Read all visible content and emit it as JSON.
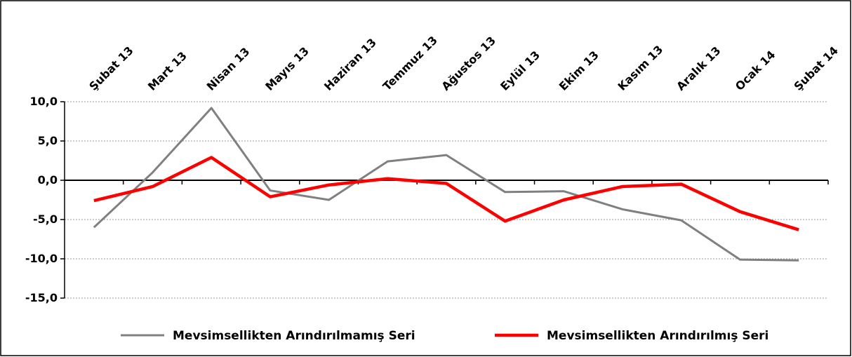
{
  "chart_data": {
    "type": "line",
    "categories": [
      "Şubat 13",
      "Mart 13",
      "Nisan 13",
      "Mayıs 13",
      "Haziran 13",
      "Temmuz 13",
      "Ağustos 13",
      "Eylül 13",
      "Ekim 13",
      "Kasım 13",
      "Aralık 13",
      "Ocak 14",
      "Şubat 14"
    ],
    "series": [
      {
        "name": "Mevsimsellikten Arındırılmamış Seri",
        "color": "#808080",
        "values": [
          -6.0,
          1.0,
          9.2,
          -1.3,
          -2.5,
          2.4,
          3.2,
          -1.5,
          -1.4,
          -3.7,
          -5.1,
          -10.1,
          -10.2
        ]
      },
      {
        "name": "Mevsimsellikten Arındırılmış Seri",
        "color": "#ff0000",
        "values": [
          -2.6,
          -0.8,
          2.9,
          -2.1,
          -0.6,
          0.2,
          -0.4,
          -5.2,
          -2.5,
          -0.8,
          -0.5,
          -4.0,
          -6.3
        ]
      }
    ],
    "ylim": [
      -15,
      10
    ],
    "yticks": [
      {
        "value": 10,
        "label": "10,0"
      },
      {
        "value": 5,
        "label": "5,0"
      },
      {
        "value": 0,
        "label": "0,0"
      },
      {
        "value": -5,
        "label": "-5,0"
      },
      {
        "value": -10,
        "label": "-10,0"
      },
      {
        "value": -15,
        "label": "-15,0"
      }
    ],
    "grid": true,
    "legend": "bottom"
  }
}
